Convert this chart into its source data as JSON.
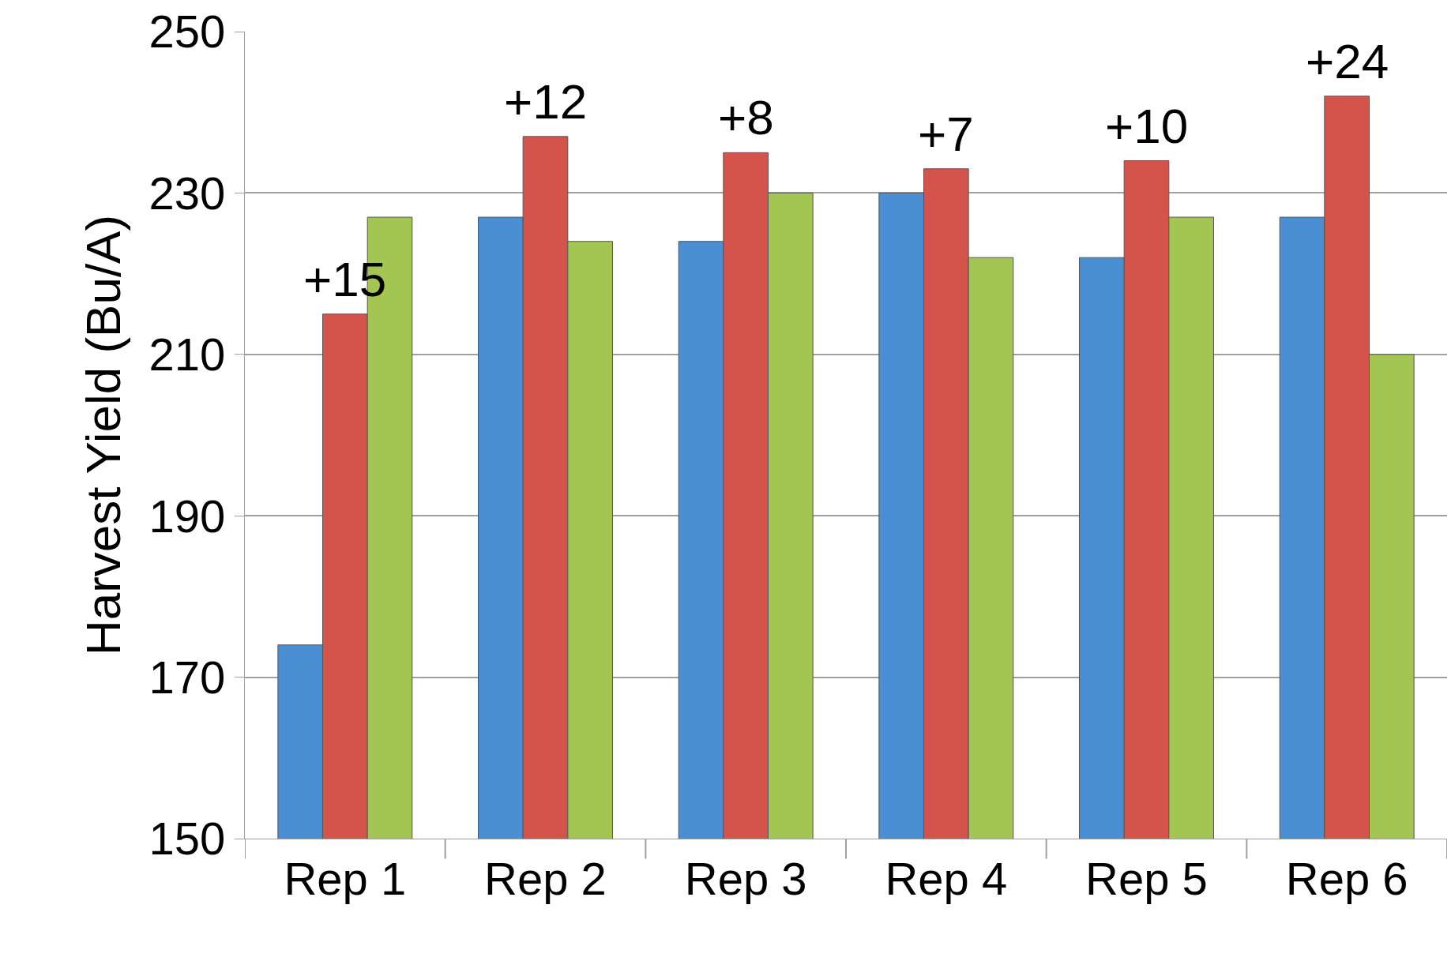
{
  "chart_data": {
    "type": "bar",
    "ylabel": "Harvest Yield (Bu/A)",
    "categories": [
      "Rep 1",
      "Rep 2",
      "Rep 3",
      "Rep 4",
      "Rep 5",
      "Rep 6"
    ],
    "series": [
      {
        "color": "#4a8fd4",
        "values": [
          174,
          227,
          224,
          230,
          222,
          227
        ]
      },
      {
        "color": "#d4544b",
        "values": [
          215,
          237,
          235,
          233,
          234,
          242
        ]
      },
      {
        "color": "#a3c652",
        "values": [
          227,
          224,
          230,
          222,
          227,
          210
        ]
      }
    ],
    "annotations": [
      {
        "text": "+15",
        "x": "Rep 1",
        "y": 215
      },
      {
        "text": "+12",
        "x": "Rep 2",
        "y": 237
      },
      {
        "text": "+8",
        "x": "Rep 3",
        "y": 235
      },
      {
        "text": "+7",
        "x": "Rep 4",
        "y": 233
      },
      {
        "text": "+10",
        "x": "Rep 5",
        "y": 234
      },
      {
        "text": "+24",
        "x": "Rep 6",
        "y": 242
      }
    ],
    "ylim": [
      150,
      250
    ],
    "yticks": [
      150,
      170,
      190,
      210,
      230,
      250
    ],
    "grid": "y"
  }
}
